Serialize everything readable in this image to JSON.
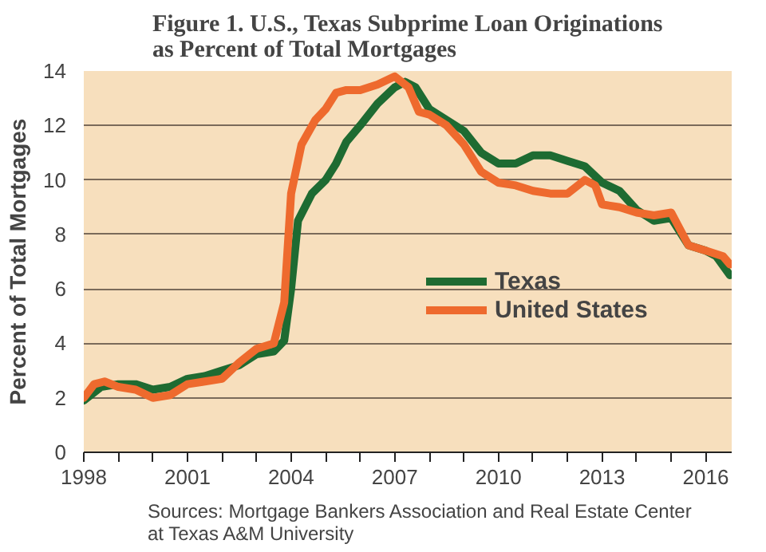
{
  "chart_data": {
    "type": "line",
    "title": "Figure 1. U.S., Texas Subprime Loan Originations\nas Percent of Total Mortgages",
    "ylabel": "Percent of Total Mortgages",
    "annotations": [
      "Sources: Mortgage Bankers Association and Real Estate Center\nat Texas A&M University"
    ],
    "xlim": [
      1998,
      2016.75
    ],
    "ylim": [
      0,
      14
    ],
    "xticks": [
      1998,
      {
        "value": 1999,
        "label": null
      },
      {
        "value": 2000,
        "label": null
      },
      2001,
      {
        "value": 2002,
        "label": null
      },
      {
        "value": 2003,
        "label": null
      },
      2004,
      {
        "value": 2005,
        "label": null
      },
      {
        "value": 2006,
        "label": null
      },
      2007,
      {
        "value": 2008,
        "label": null
      },
      {
        "value": 2009,
        "label": null
      },
      2010,
      {
        "value": 2011,
        "label": null
      },
      {
        "value": 2012,
        "label": null
      },
      2013,
      {
        "value": 2014,
        "label": null
      },
      {
        "value": 2015,
        "label": null
      },
      2016
    ],
    "yticks": [
      0,
      2,
      4,
      6,
      8,
      10,
      12,
      14
    ],
    "grid": "y",
    "legend": "right",
    "line_style": "solid",
    "series": [
      {
        "name": "Texas",
        "color": "#1e6b32",
        "x": [
          1998,
          1998.5,
          1999,
          1999.5,
          2000,
          2000.5,
          2001,
          2001.5,
          2002,
          2002.5,
          2003,
          2003.5,
          2003.8,
          2004,
          2004.2,
          2004.6,
          2005,
          2005.3,
          2005.6,
          2006,
          2006.5,
          2007,
          2007.3,
          2007.6,
          2008,
          2008.5,
          2009,
          2009.5,
          2010,
          2010.5,
          2011,
          2011.5,
          2012,
          2012.5,
          2013,
          2013.5,
          2014,
          2014.5,
          2015,
          2015.5,
          2016,
          2016.3,
          2016.7
        ],
        "values": [
          1.9,
          2.4,
          2.5,
          2.5,
          2.3,
          2.4,
          2.7,
          2.8,
          3.0,
          3.2,
          3.6,
          3.7,
          4.1,
          6.0,
          8.5,
          9.5,
          10.0,
          10.6,
          11.4,
          12.0,
          12.8,
          13.4,
          13.6,
          13.4,
          12.6,
          12.2,
          11.8,
          11.0,
          10.6,
          10.6,
          10.9,
          10.9,
          10.7,
          10.5,
          9.9,
          9.6,
          8.9,
          8.5,
          8.6,
          7.6,
          7.4,
          7.2,
          6.5
        ]
      },
      {
        "name": "United States",
        "color": "#ee6a2e",
        "x": [
          1998,
          1998.3,
          1998.6,
          1999,
          1999.5,
          2000,
          2000.5,
          2001,
          2001.5,
          2002,
          2002.5,
          2003,
          2003.5,
          2003.8,
          2004,
          2004.3,
          2004.7,
          2005,
          2005.3,
          2005.6,
          2006,
          2006.5,
          2007,
          2007.4,
          2007.7,
          2008,
          2008.5,
          2009,
          2009.5,
          2010,
          2010.5,
          2011,
          2011.5,
          2012,
          2012.5,
          2012.8,
          2013,
          2013.5,
          2014,
          2014.5,
          2015,
          2015.5,
          2016,
          2016.5,
          2016.7
        ],
        "values": [
          2.0,
          2.5,
          2.6,
          2.4,
          2.3,
          2.0,
          2.1,
          2.5,
          2.6,
          2.7,
          3.3,
          3.8,
          4.0,
          5.5,
          9.5,
          11.3,
          12.2,
          12.6,
          13.2,
          13.3,
          13.3,
          13.5,
          13.8,
          13.4,
          12.5,
          12.4,
          12.0,
          11.3,
          10.3,
          9.9,
          9.8,
          9.6,
          9.5,
          9.5,
          10.0,
          9.8,
          9.1,
          9.0,
          8.8,
          8.7,
          8.8,
          7.6,
          7.4,
          7.2,
          6.9
        ]
      }
    ]
  }
}
